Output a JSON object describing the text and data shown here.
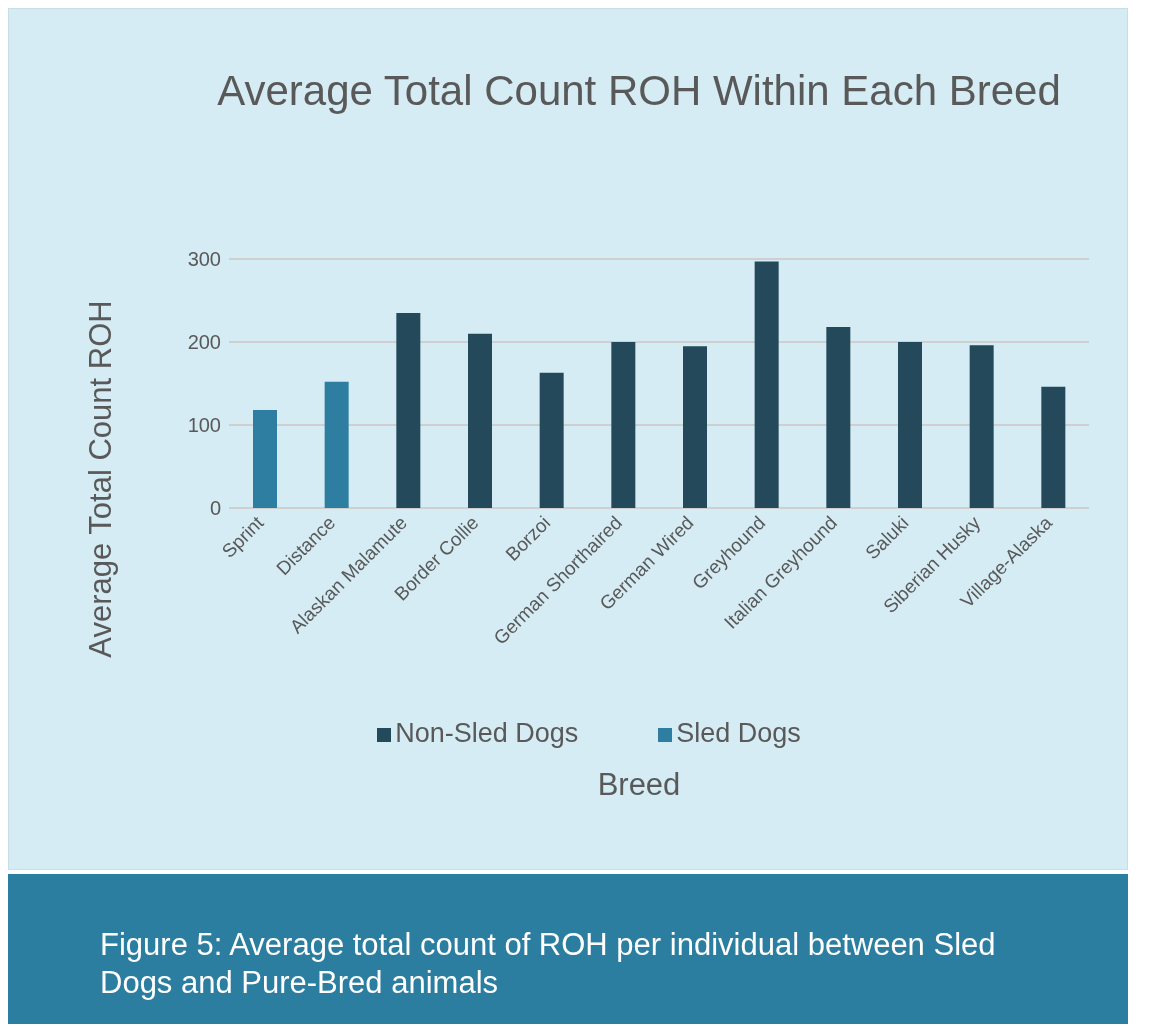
{
  "chart_data": {
    "type": "bar",
    "title": "Average Total Count ROH Within Each Breed",
    "xlabel": "Breed",
    "ylabel": "Average Total Count ROH",
    "categories": [
      "Sprint",
      "Distance",
      "Alaskan Malamute",
      "Border Collie",
      "Borzoi",
      "German Shorthaired",
      "German Wired",
      "Greyhound",
      "Italian Greyhound",
      "Saluki",
      "Siberian Husky",
      "Village-Alaska"
    ],
    "series": [
      {
        "name": "Sled Dogs",
        "color": "#2e7ea1",
        "values": [
          118,
          152,
          null,
          null,
          null,
          null,
          null,
          null,
          null,
          null,
          null,
          null
        ]
      },
      {
        "name": "Non-Sled Dogs",
        "color": "#23495a",
        "values": [
          null,
          null,
          235,
          210,
          163,
          200,
          195,
          297,
          218,
          200,
          196,
          146
        ]
      }
    ],
    "stacked": true,
    "ylim": [
      0,
      300
    ],
    "yticks": [
      0,
      100,
      200,
      300
    ],
    "grid": "y",
    "legend": "bottom",
    "annotations": [
      "Figure 5: Average total count of ROH per individual between Sled Dogs and Pure-Bred animals"
    ]
  }
}
